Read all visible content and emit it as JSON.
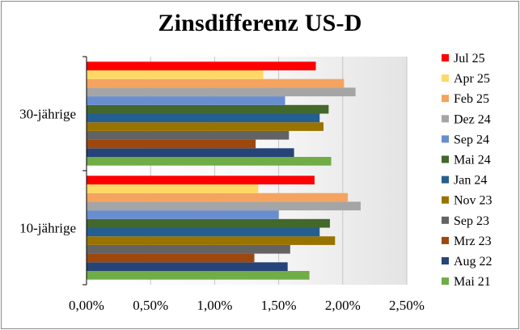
{
  "chart_data": {
    "type": "bar",
    "orientation": "horizontal",
    "title": "Zinsdifferenz US-D",
    "xlabel": "",
    "ylabel": "",
    "xlim": [
      0,
      0.025
    ],
    "x_ticks": [
      "0,00%",
      "0,50%",
      "1,00%",
      "1,50%",
      "2,00%",
      "2,50%"
    ],
    "categories": [
      "10-jährige",
      "30-jährige"
    ],
    "grid": true,
    "legend_position": "right",
    "series": [
      {
        "name": "Mai 21",
        "color": "#70ad47",
        "values": [
          0.0174,
          0.0191
        ]
      },
      {
        "name": "Aug 22",
        "color": "#264478",
        "values": [
          0.0157,
          0.0162
        ]
      },
      {
        "name": "Mrz 23",
        "color": "#9e480e",
        "values": [
          0.0131,
          0.0132
        ]
      },
      {
        "name": "Sep 23",
        "color": "#636363",
        "values": [
          0.0159,
          0.0158
        ]
      },
      {
        "name": "Nov 23",
        "color": "#997300",
        "values": [
          0.0194,
          0.0185
        ]
      },
      {
        "name": "Jan 24",
        "color": "#255e91",
        "values": [
          0.0182,
          0.0182
        ]
      },
      {
        "name": "Mai 24",
        "color": "#43682b",
        "values": [
          0.019,
          0.0189
        ]
      },
      {
        "name": "Sep 24",
        "color": "#698ed0",
        "values": [
          0.015,
          0.0155
        ]
      },
      {
        "name": "Dez 24",
        "color": "#a5a5a5",
        "values": [
          0.0214,
          0.021
        ]
      },
      {
        "name": "Feb 25",
        "color": "#f4a460",
        "values": [
          0.0204,
          0.0201
        ]
      },
      {
        "name": "Apr 25",
        "color": "#ffd966",
        "values": [
          0.0134,
          0.0138
        ]
      },
      {
        "name": "Jul 25",
        "color": "#ff0000",
        "values": [
          0.0178,
          0.0179
        ]
      }
    ]
  }
}
